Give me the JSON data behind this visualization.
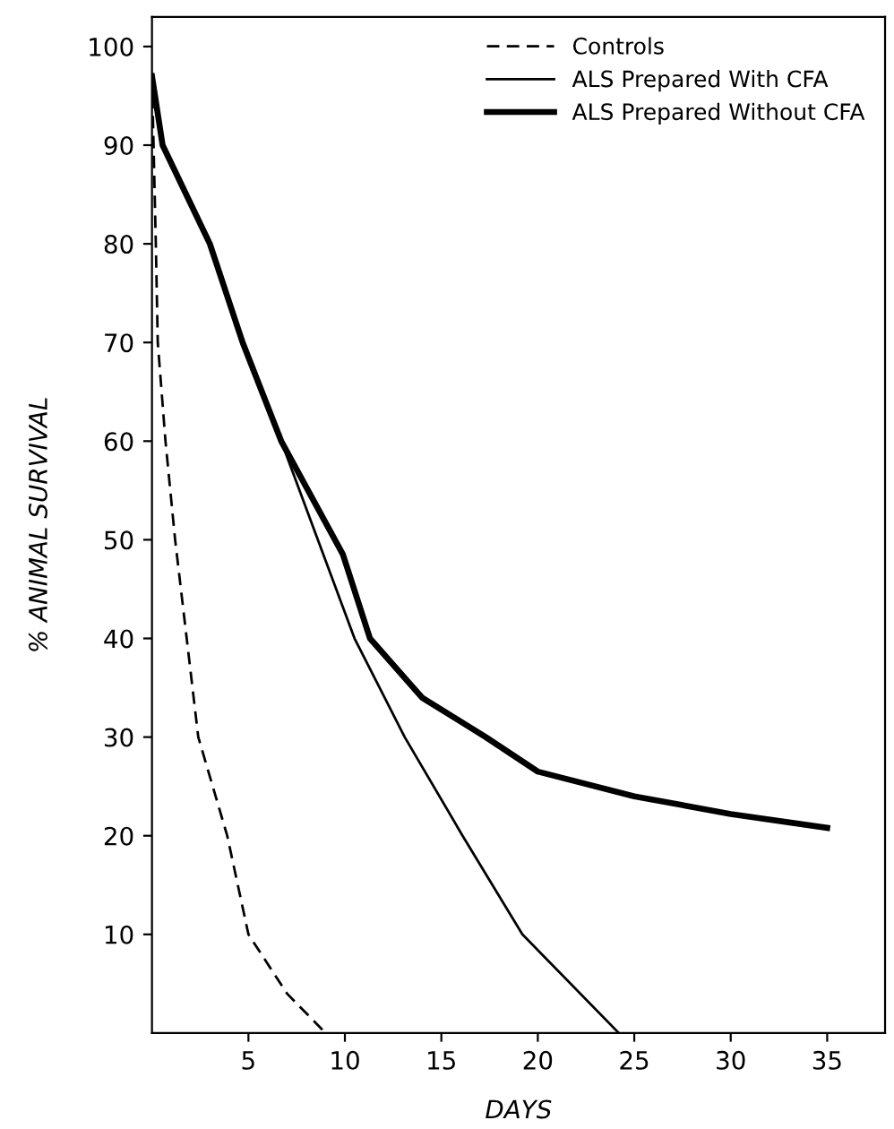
{
  "chart_data": {
    "type": "line",
    "xlabel": "DAYS",
    "ylabel": "% ANIMAL SURVIVAL",
    "xlim": [
      0,
      38
    ],
    "ylim": [
      0,
      103
    ],
    "xticks": [
      5,
      10,
      15,
      20,
      25,
      30,
      35
    ],
    "yticks": [
      10,
      20,
      30,
      40,
      50,
      60,
      70,
      80,
      90,
      100
    ],
    "grid": false,
    "legend": "top right",
    "marker": "none",
    "series": [
      {
        "name": "Controls",
        "color": "#000000",
        "line_style": "dashed",
        "x": [
          0,
          0.2,
          0.3,
          0.7,
          1.2,
          1.8,
          2.4,
          3.9,
          5,
          7,
          9
        ],
        "values": [
          97,
          80,
          70,
          60,
          50,
          40,
          30,
          20,
          10,
          4,
          0
        ]
      },
      {
        "name": "ALS Prepared With CFA",
        "color": "#000000",
        "line_style": "solid",
        "x": [
          0,
          0.55,
          3,
          4.7,
          6.7,
          8.6,
          10.5,
          13.1,
          16.1,
          19.2,
          24.2
        ],
        "values": [
          97,
          90,
          80,
          70,
          60,
          50,
          40,
          30,
          20,
          10,
          0
        ]
      },
      {
        "name": "ALS Prepared Without CFA",
        "color": "#000000",
        "line_style": "solid",
        "x": [
          0,
          0.55,
          3,
          4.7,
          6.7,
          9.9,
          11.3,
          14,
          17.3,
          20,
          25,
          30,
          35
        ],
        "values": [
          97,
          90,
          80,
          70,
          60,
          48.5,
          40,
          34,
          30,
          26.5,
          24,
          22.2,
          20.8
        ]
      }
    ]
  }
}
